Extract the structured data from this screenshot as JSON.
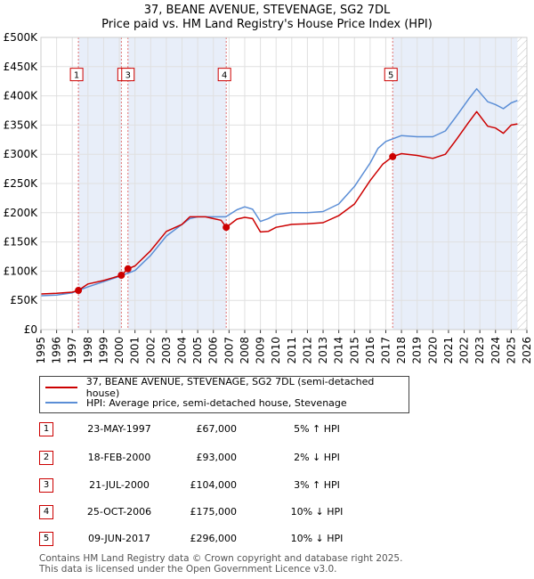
{
  "chart_data": {
    "type": "line",
    "title": "37, BEANE AVENUE, STEVENAGE, SG2 7DL",
    "subtitle": "Price paid vs. HM Land Registry's House Price Index (HPI)",
    "xlim": [
      1995,
      2026
    ],
    "ylim": [
      0,
      500000
    ],
    "x_ticks": [
      "1995",
      "1996",
      "1997",
      "1998",
      "1999",
      "2000",
      "2001",
      "2002",
      "2003",
      "2004",
      "2005",
      "2006",
      "2007",
      "2008",
      "2009",
      "2010",
      "2011",
      "2012",
      "2013",
      "2014",
      "2015",
      "2016",
      "2017",
      "2018",
      "2019",
      "2020",
      "2021",
      "2022",
      "2023",
      "2024",
      "2025",
      "2026"
    ],
    "y_ticks": [
      {
        "value": 0,
        "label": "£0"
      },
      {
        "value": 50000,
        "label": "£50K"
      },
      {
        "value": 100000,
        "label": "£100K"
      },
      {
        "value": 150000,
        "label": "£150K"
      },
      {
        "value": 200000,
        "label": "£200K"
      },
      {
        "value": 250000,
        "label": "£250K"
      },
      {
        "value": 300000,
        "label": "£300K"
      },
      {
        "value": 350000,
        "label": "£350K"
      },
      {
        "value": 400000,
        "label": "£400K"
      },
      {
        "value": 450000,
        "label": "£450K"
      },
      {
        "value": 500000,
        "label": "£500K"
      }
    ],
    "series": [
      {
        "name": "37, BEANE AVENUE, STEVENAGE, SG2 7DL (semi-detached house)",
        "color": "#cc0000",
        "points": [
          [
            1995,
            61000
          ],
          [
            1996,
            62000
          ],
          [
            1997,
            64000
          ],
          [
            1997.39,
            67000
          ],
          [
            1998,
            78000
          ],
          [
            1999,
            84000
          ],
          [
            2000.13,
            93000
          ],
          [
            2000.55,
            104000
          ],
          [
            2001,
            109000
          ],
          [
            2002,
            135000
          ],
          [
            2003,
            168000
          ],
          [
            2004,
            180000
          ],
          [
            2004.5,
            193000
          ],
          [
            2005.5,
            193000
          ],
          [
            2006,
            190000
          ],
          [
            2006.5,
            187000
          ],
          [
            2006.82,
            175000
          ],
          [
            2007.5,
            189000
          ],
          [
            2008,
            192000
          ],
          [
            2008.5,
            190000
          ],
          [
            2009,
            167000
          ],
          [
            2009.5,
            168000
          ],
          [
            2010,
            175000
          ],
          [
            2011,
            180000
          ],
          [
            2012,
            181000
          ],
          [
            2013,
            183000
          ],
          [
            2014,
            195000
          ],
          [
            2015,
            215000
          ],
          [
            2016,
            255000
          ],
          [
            2016.8,
            283000
          ],
          [
            2017.44,
            296000
          ],
          [
            2018,
            301000
          ],
          [
            2019,
            298000
          ],
          [
            2020,
            293000
          ],
          [
            2020.8,
            300000
          ],
          [
            2021.5,
            325000
          ],
          [
            2022.3,
            355000
          ],
          [
            2022.8,
            373000
          ],
          [
            2023.5,
            348000
          ],
          [
            2024,
            345000
          ],
          [
            2024.5,
            336000
          ],
          [
            2025,
            350000
          ],
          [
            2025.4,
            352000
          ]
        ]
      },
      {
        "name": "HPI: Average price, semi-detached house, Stevenage",
        "color": "#5b8ed6",
        "points": [
          [
            1995,
            58000
          ],
          [
            1996,
            59000
          ],
          [
            1997,
            63000
          ],
          [
            1998,
            73000
          ],
          [
            1999,
            82000
          ],
          [
            2000,
            91000
          ],
          [
            2001,
            101000
          ],
          [
            2002,
            127000
          ],
          [
            2003,
            160000
          ],
          [
            2004,
            180000
          ],
          [
            2004.5,
            190000
          ],
          [
            2005,
            193000
          ],
          [
            2006,
            193000
          ],
          [
            2006.8,
            193000
          ],
          [
            2007.5,
            205000
          ],
          [
            2008,
            210000
          ],
          [
            2008.5,
            206000
          ],
          [
            2009,
            185000
          ],
          [
            2009.5,
            190000
          ],
          [
            2010,
            197000
          ],
          [
            2011,
            200000
          ],
          [
            2012,
            200000
          ],
          [
            2013,
            202000
          ],
          [
            2014,
            215000
          ],
          [
            2015,
            245000
          ],
          [
            2016,
            285000
          ],
          [
            2016.5,
            310000
          ],
          [
            2017,
            322000
          ],
          [
            2018,
            332000
          ],
          [
            2019,
            330000
          ],
          [
            2020,
            330000
          ],
          [
            2020.8,
            340000
          ],
          [
            2021.5,
            365000
          ],
          [
            2022.3,
            395000
          ],
          [
            2022.8,
            412000
          ],
          [
            2023.5,
            390000
          ],
          [
            2024,
            385000
          ],
          [
            2024.5,
            378000
          ],
          [
            2025,
            388000
          ],
          [
            2025.4,
            392000
          ]
        ]
      }
    ],
    "sales": [
      {
        "num": "1",
        "date": "23-MAY-1997",
        "x": 1997.39,
        "price": 67000,
        "price_label": "£67,000",
        "hpi": "5% ↑ HPI"
      },
      {
        "num": "2",
        "date": "18-FEB-2000",
        "x": 2000.13,
        "price": 93000,
        "price_label": "£93,000",
        "hpi": "2% ↓ HPI"
      },
      {
        "num": "3",
        "date": "21-JUL-2000",
        "x": 2000.55,
        "price": 104000,
        "price_label": "£104,000",
        "hpi": "3% ↑ HPI"
      },
      {
        "num": "4",
        "date": "25-OCT-2006",
        "x": 2006.82,
        "price": 175000,
        "price_label": "£175,000",
        "hpi": "10% ↓ HPI"
      },
      {
        "num": "5",
        "date": "09-JUN-2017",
        "x": 2017.44,
        "price": 296000,
        "price_label": "£296,000",
        "hpi": "10% ↓ HPI"
      }
    ],
    "shaded_ranges": [
      [
        1997.39,
        2000.13
      ],
      [
        2000.55,
        2006.82
      ],
      [
        2017.44,
        2025.4
      ]
    ],
    "hatched_from": 2025.4,
    "grid": true
  },
  "legend": {
    "property_label": "37, BEANE AVENUE, STEVENAGE, SG2 7DL (semi-detached house)",
    "hpi_label": "HPI: Average price, semi-detached house, Stevenage"
  },
  "footer": {
    "line1": "Contains HM Land Registry data © Crown copyright and database right 2025.",
    "line2": "This data is licensed under the Open Government Licence v3.0."
  },
  "colors": {
    "property": "#cc0000",
    "hpi": "#5b8ed6",
    "shade": "#e8eef9"
  }
}
